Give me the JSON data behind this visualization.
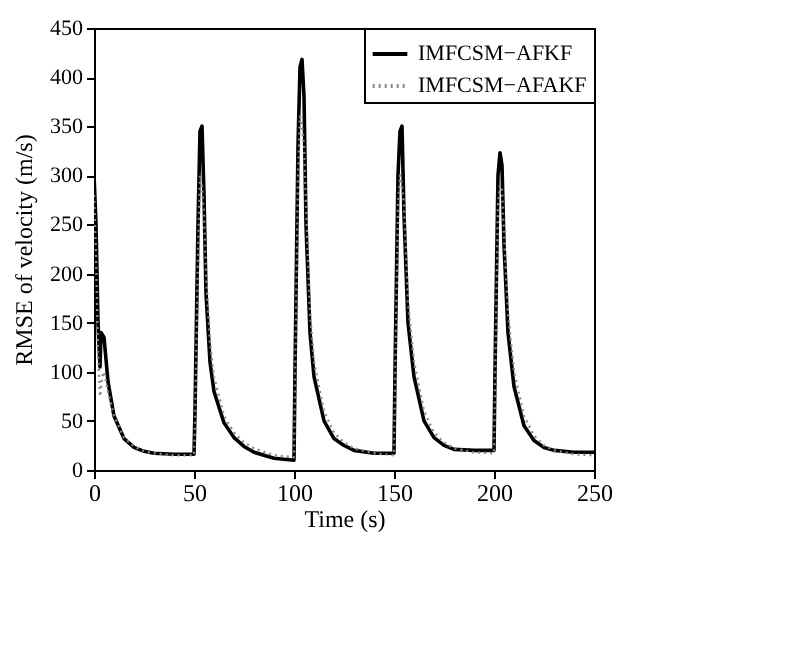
{
  "chart_data": {
    "type": "line",
    "xlabel": "Time (s)",
    "ylabel": "RMSE of velocity (m/s)",
    "xlim": [
      0,
      250
    ],
    "ylim": [
      0,
      450
    ],
    "xticks": [
      0,
      50,
      100,
      150,
      200,
      250
    ],
    "yticks": [
      0,
      50,
      100,
      150,
      200,
      250,
      300,
      350,
      400,
      450
    ],
    "grid": false,
    "legend": "top right",
    "marker": "none",
    "series": [
      {
        "name": "IMFCSM−AFKF",
        "color": "#000000",
        "line_style": "solid",
        "x": [
          0,
          1,
          2,
          3,
          3.5,
          5,
          7,
          10,
          15,
          20,
          25,
          30,
          40,
          50,
          50.5,
          52,
          53,
          54,
          55,
          56,
          58,
          60,
          65,
          70,
          75,
          80,
          90,
          100,
          100.5,
          102,
          103,
          104,
          105,
          106,
          108,
          110,
          115,
          120,
          125,
          130,
          140,
          150,
          150.5,
          152,
          153,
          154,
          155,
          157,
          160,
          165,
          170,
          175,
          180,
          190,
          200,
          200.5,
          202,
          203,
          204,
          205,
          207,
          210,
          215,
          220,
          225,
          230,
          240,
          250
        ],
        "values": [
          300,
          250,
          150,
          105,
          140,
          135,
          90,
          55,
          32,
          23,
          19,
          17,
          16,
          16,
          60,
          250,
          345,
          350,
          280,
          180,
          110,
          80,
          48,
          33,
          24,
          18,
          12,
          10,
          100,
          330,
          410,
          418,
          380,
          250,
          140,
          95,
          50,
          32,
          25,
          20,
          17,
          17,
          100,
          300,
          345,
          350,
          260,
          150,
          95,
          50,
          33,
          25,
          21,
          20,
          20,
          100,
          300,
          323,
          310,
          230,
          140,
          85,
          45,
          30,
          23,
          20,
          18,
          18
        ]
      },
      {
        "name": "IMFCSM−AFAKF",
        "color": "#888888",
        "line_style": "dotted",
        "x": [
          0,
          1,
          2,
          3,
          4,
          5,
          7,
          10,
          15,
          20,
          25,
          30,
          40,
          50,
          50.5,
          52,
          53,
          54,
          55,
          56,
          58,
          60,
          65,
          70,
          75,
          80,
          90,
          100,
          100.5,
          102,
          103,
          104,
          105,
          106,
          108,
          110,
          115,
          120,
          125,
          130,
          140,
          150,
          150.5,
          152,
          153,
          154,
          155,
          157,
          160,
          165,
          170,
          175,
          180,
          190,
          200,
          200.5,
          202,
          203,
          204,
          205,
          207,
          210,
          215,
          220,
          225,
          230,
          240,
          250
        ],
        "values": [
          280,
          220,
          120,
          75,
          95,
          100,
          80,
          55,
          33,
          24,
          19,
          17,
          15,
          15,
          50,
          220,
          300,
          290,
          260,
          200,
          130,
          95,
          55,
          38,
          28,
          22,
          15,
          13,
          90,
          300,
          360,
          350,
          330,
          270,
          160,
          110,
          60,
          38,
          28,
          22,
          17,
          15,
          90,
          270,
          300,
          290,
          270,
          170,
          110,
          60,
          38,
          28,
          22,
          18,
          17,
          90,
          270,
          290,
          285,
          240,
          160,
          100,
          55,
          35,
          25,
          20,
          16,
          15
        ]
      }
    ]
  }
}
